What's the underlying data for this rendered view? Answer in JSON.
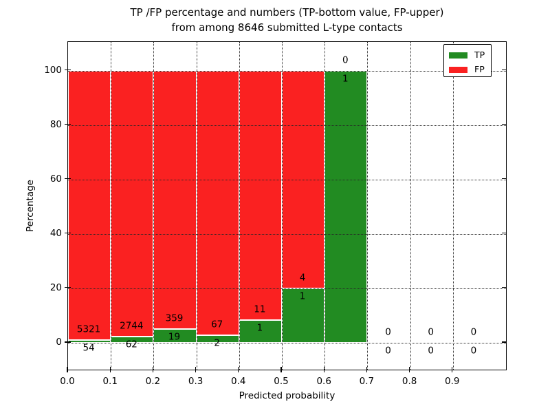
{
  "chart_data": {
    "type": "bar",
    "subtype": "stacked_percentage_histogram",
    "title_line1": "TP /FP percentage and numbers (TP-bottom value, FP-upper)",
    "title_line2": "from among 8646 submitted L-type contacts",
    "total_contacts": 8646,
    "xlabel": "Predicted probability",
    "ylabel": "Percentage",
    "bin_width": 0.1,
    "bin_starts": [
      0.0,
      0.1,
      0.2,
      0.3,
      0.4,
      0.5,
      0.6,
      0.7,
      0.8,
      0.9
    ],
    "series": [
      {
        "name": "TP",
        "color": "#228B22",
        "values": [
          54,
          62,
          19,
          2,
          1,
          1,
          1,
          0,
          0,
          0
        ]
      },
      {
        "name": "FP",
        "color": "#FA2121",
        "values": [
          5321,
          2744,
          359,
          67,
          11,
          4,
          0,
          0,
          0,
          0
        ]
      }
    ],
    "tp_percent_per_bin": [
      1.0,
      2.2,
      5.0,
      2.9,
      8.3,
      20.0,
      100.0,
      null,
      null,
      null
    ],
    "label_rule": "FP count printed above green/red boundary, TP count printed below it",
    "xticks": [
      "0.0",
      "0.1",
      "0.2",
      "0.3",
      "0.4",
      "0.5",
      "0.6",
      "0.7",
      "0.8",
      "0.9"
    ],
    "yticks": [
      0,
      20,
      40,
      60,
      80,
      100
    ],
    "xlim": [
      0,
      1.03
    ],
    "ylim": [
      -10,
      110
    ],
    "grid": "dotted black, drawn above bars",
    "bar_edge_color": "#FFFFFF",
    "legend": {
      "position": "upper right",
      "entries": [
        "TP",
        "FP"
      ]
    }
  }
}
